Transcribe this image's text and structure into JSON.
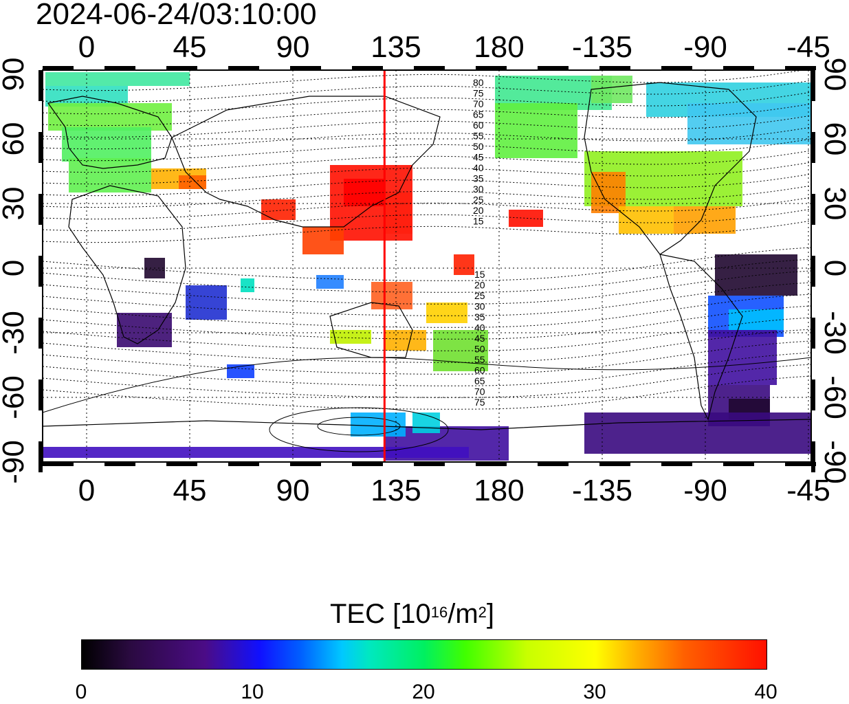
{
  "title": "2024-06-24/03:10:00",
  "map": {
    "top_axis_labels": [
      "0",
      "45",
      "90",
      "135",
      "180",
      "-135",
      "-90",
      "-45"
    ],
    "bottom_axis_labels": [
      "0",
      "45",
      "90",
      "135",
      "180",
      "-135",
      "-90",
      "-45"
    ],
    "left_axis_labels": [
      "90",
      "60",
      "30",
      "0",
      "-30",
      "-60",
      "-90"
    ],
    "right_axis_labels": [
      "90",
      "60",
      "30",
      "0",
      "-30",
      "-60",
      "-90"
    ],
    "contour_labels_north": [
      "80",
      "75",
      "70",
      "65",
      "60",
      "55",
      "50",
      "45",
      "40",
      "35",
      "30",
      "25",
      "20",
      "15"
    ],
    "contour_labels_south": [
      "15",
      "20",
      "25",
      "30",
      "35",
      "40",
      "45",
      "50",
      "55",
      "60",
      "65",
      "70",
      "75"
    ],
    "meridian_marker_lon": 130,
    "meridian_marker_color": "#ff0000"
  },
  "colorbar": {
    "label_prefix": "TEC  [10",
    "label_exp1": "16",
    "label_mid": "/m",
    "label_exp2": "2",
    "label_suffix": "]",
    "ticks": [
      "0",
      "10",
      "20",
      "30",
      "40"
    ],
    "min": 0,
    "max": 40
  }
}
